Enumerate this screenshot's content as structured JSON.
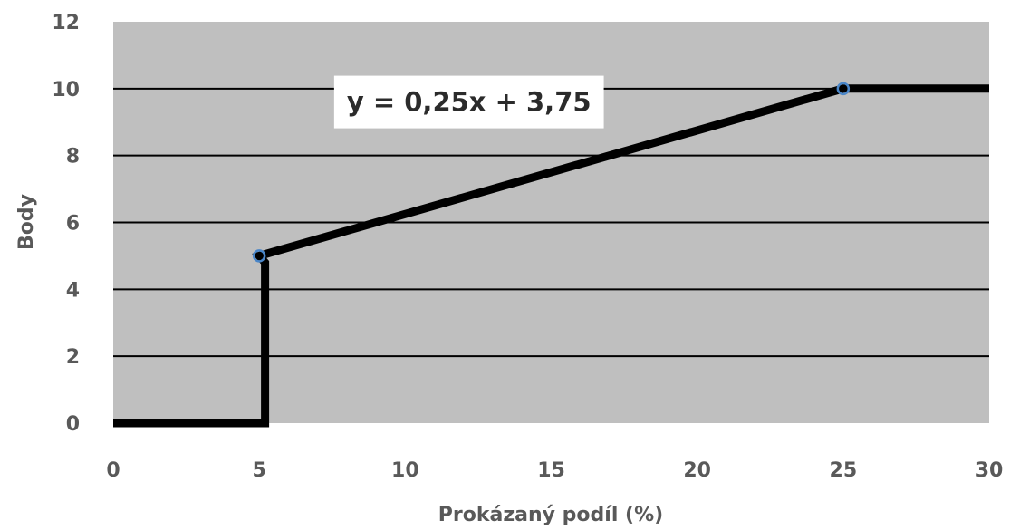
{
  "chart_data": {
    "type": "line",
    "xlabel": "Prokázaný podíl (%)",
    "ylabel": "Body",
    "xlim": [
      0,
      30
    ],
    "ylim": [
      0,
      12
    ],
    "x_ticks": [
      0,
      5,
      10,
      15,
      20,
      25,
      30
    ],
    "y_ticks": [
      0,
      2,
      4,
      6,
      8,
      10,
      12
    ],
    "grid": "horizontal",
    "series": [
      {
        "values": [
          [
            0,
            0
          ],
          [
            5.2,
            0
          ],
          [
            5.2,
            4.8
          ],
          [
            5,
            5
          ],
          [
            25,
            10
          ],
          [
            30,
            10
          ]
        ]
      }
    ],
    "markers": [
      [
        5,
        5
      ],
      [
        25,
        10
      ]
    ],
    "annotation": {
      "text": "y = 0,25x + 3,75",
      "x": 8,
      "y": 9.6
    },
    "colors": {
      "plot_background": "#bfbfbf",
      "line": "#000000",
      "marker": "#4a86c8",
      "gridline": "#000000",
      "text": "#595959"
    }
  }
}
